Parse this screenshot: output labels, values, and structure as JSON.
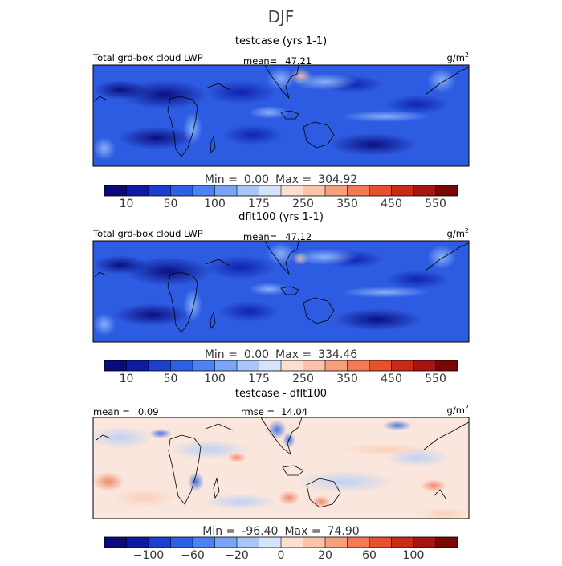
{
  "figure": {
    "title": "DJF"
  },
  "chart_data": [
    {
      "type": "heatmap",
      "title": "testcase (yrs 1-1)",
      "variable": "Total grd-box cloud LWP",
      "stat_label": "mean=",
      "stat_value": "47.21",
      "stat2_label": "",
      "stat2_value": "",
      "units": "g/m",
      "units_sup": "2",
      "min_label": "Min =",
      "min_value": "0.00",
      "max_label": "Max =",
      "max_value": "304.92",
      "colorbar": {
        "colors": [
          "#0a0a7a",
          "#0c1aa5",
          "#1d3fd0",
          "#2f5fe6",
          "#4d82f2",
          "#7aa5f7",
          "#aac6f9",
          "#d5e3fb",
          "#fbe0d2",
          "#fbc3aa",
          "#f7a080",
          "#f27a55",
          "#e8502e",
          "#cc2a18",
          "#a81410",
          "#7a0606"
        ],
        "tick_labels": [
          "10",
          "50",
          "100",
          "175",
          "250",
          "350",
          "450",
          "550"
        ],
        "tick_boundaries": [
          1,
          3,
          5,
          7,
          9,
          11,
          13,
          15
        ]
      }
    },
    {
      "type": "heatmap",
      "title": "dflt100 (yrs 1-1)",
      "variable": "Total grd-box cloud LWP",
      "stat_label": "mean=",
      "stat_value": "47.12",
      "stat2_label": "",
      "stat2_value": "",
      "units": "g/m",
      "units_sup": "2",
      "min_label": "Min =",
      "min_value": "0.00",
      "max_label": "Max =",
      "max_value": "334.46",
      "colorbar": {
        "colors": [
          "#0a0a7a",
          "#0c1aa5",
          "#1d3fd0",
          "#2f5fe6",
          "#4d82f2",
          "#7aa5f7",
          "#aac6f9",
          "#d5e3fb",
          "#fbe0d2",
          "#fbc3aa",
          "#f7a080",
          "#f27a55",
          "#e8502e",
          "#cc2a18",
          "#a81410",
          "#7a0606"
        ],
        "tick_labels": [
          "10",
          "50",
          "100",
          "175",
          "250",
          "350",
          "450",
          "550"
        ],
        "tick_boundaries": [
          1,
          3,
          5,
          7,
          9,
          11,
          13,
          15
        ]
      }
    },
    {
      "type": "heatmap",
      "title": "testcase - dflt100",
      "variable": "",
      "stat_label": "mean =",
      "stat_value": "0.09",
      "stat2_label": "rmse =",
      "stat2_value": "14.04",
      "units": "g/m",
      "units_sup": "2",
      "min_label": "Min =",
      "min_value": "-96.40",
      "max_label": "Max =",
      "max_value": "74.90",
      "colorbar": {
        "colors": [
          "#0a0a7a",
          "#0c1aa5",
          "#1d3fd0",
          "#2f5fe6",
          "#4d82f2",
          "#7aa5f7",
          "#aac6f9",
          "#d5e3fb",
          "#fbe0d2",
          "#fbc3aa",
          "#f7a080",
          "#f27a55",
          "#e8502e",
          "#cc2a18",
          "#a81410",
          "#7a0606"
        ],
        "tick_labels": [
          "−100",
          "−60",
          "−20",
          "0",
          "20",
          "60",
          "100"
        ],
        "tick_boundaries": [
          2,
          4,
          6,
          8,
          10,
          12,
          14
        ]
      }
    }
  ]
}
